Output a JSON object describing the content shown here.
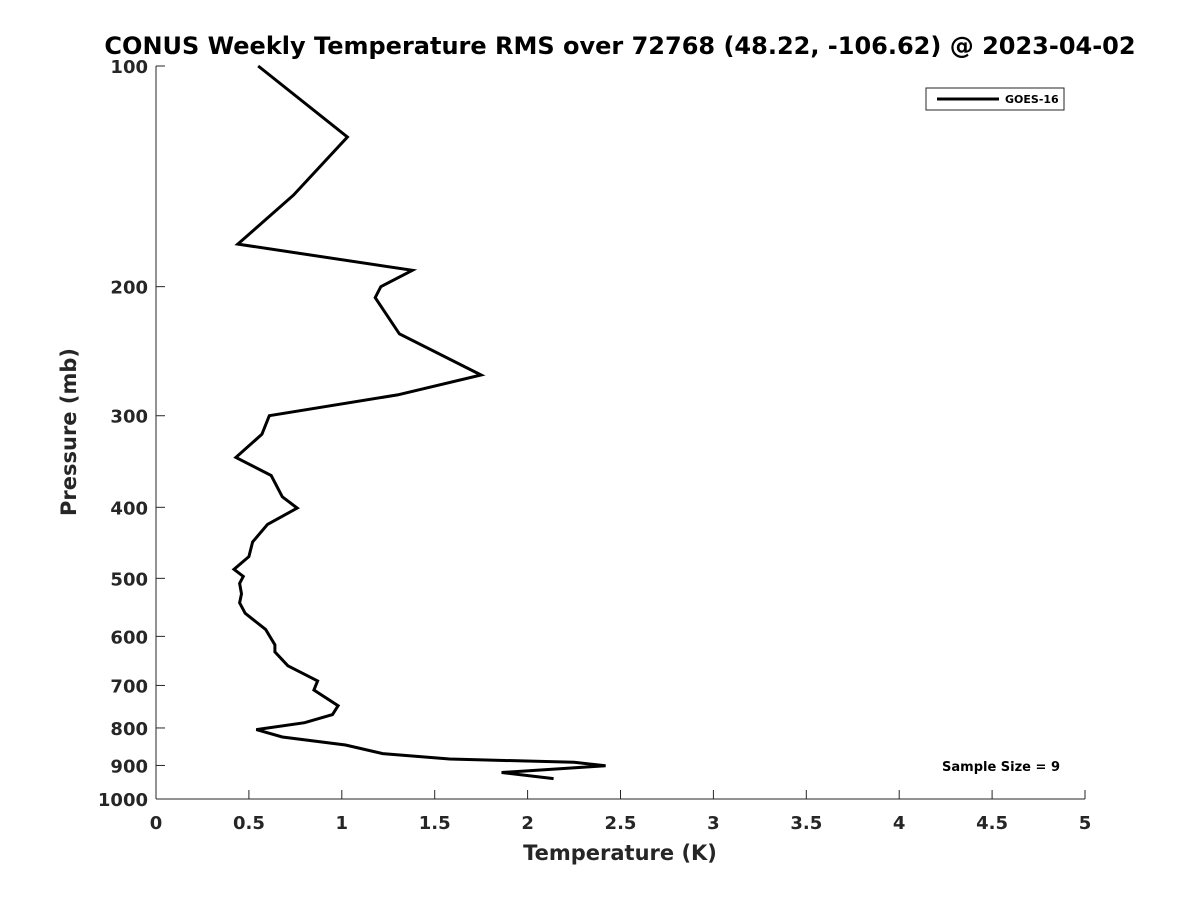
{
  "chart_data": {
    "type": "line",
    "title": "CONUS Weekly Temperature RMS over 72768 (48.22, -106.62) @ 2023-04-02",
    "xlabel": "Temperature (K)",
    "ylabel": "Pressure (mb)",
    "xlim": [
      0,
      5
    ],
    "ylim": [
      100,
      1000
    ],
    "yscale": "log",
    "y_reversed": true,
    "grid": false,
    "legend_position": "top-right",
    "x_ticks": [
      0,
      0.5,
      1,
      1.5,
      2,
      2.5,
      3,
      3.5,
      4,
      4.5,
      5
    ],
    "x_tick_labels": [
      "0",
      "0.5",
      "1",
      "1.5",
      "2",
      "2.5",
      "3",
      "3.5",
      "4",
      "4.5",
      "5"
    ],
    "y_ticks": [
      100,
      200,
      300,
      400,
      500,
      600,
      700,
      800,
      900,
      1000
    ],
    "y_tick_labels": [
      "100",
      "200",
      "300",
      "400",
      "500",
      "600",
      "700",
      "800",
      "900",
      "1000"
    ],
    "series": [
      {
        "name": "GOES-16",
        "color": "#000000",
        "x": [
          0.55,
          1.03,
          0.74,
          0.44,
          1.38,
          1.21,
          1.18,
          1.31,
          1.75,
          1.3,
          0.61,
          0.57,
          0.43,
          0.62,
          0.68,
          0.76,
          0.6,
          0.52,
          0.5,
          0.42,
          0.47,
          0.45,
          0.46,
          0.45,
          0.48,
          0.59,
          0.64,
          0.64,
          0.71,
          0.87,
          0.85,
          0.98,
          0.95,
          0.8,
          0.54,
          0.68,
          1.02,
          1.22,
          1.58,
          2.25,
          2.42,
          1.86,
          2.14
        ],
        "y": [
          100,
          125,
          150,
          175,
          190,
          200,
          207,
          232,
          264,
          281,
          300,
          318,
          342,
          362,
          387,
          401,
          422,
          446,
          467,
          486,
          497,
          508,
          525,
          540,
          558,
          587,
          616,
          630,
          658,
          690,
          710,
          746,
          767,
          787,
          804,
          823,
          844,
          867,
          882,
          891,
          901,
          920,
          938
        ]
      }
    ],
    "annotation": "Sample Size = 9"
  }
}
